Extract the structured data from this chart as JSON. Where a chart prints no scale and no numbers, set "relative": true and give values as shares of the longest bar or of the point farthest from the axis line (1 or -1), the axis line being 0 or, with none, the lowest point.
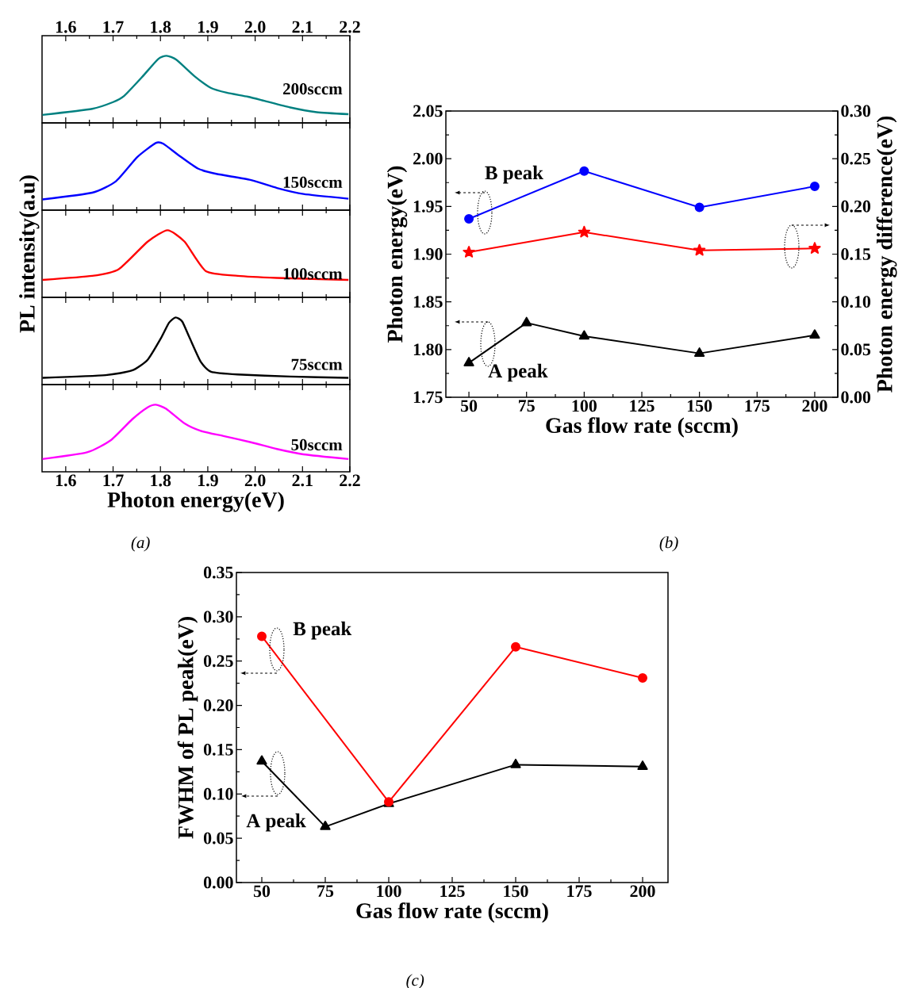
{
  "chart_data": [
    {
      "type": "line",
      "relative": true,
      "tick_labels": "x",
      "xlim": [
        1.55,
        2.2
      ],
      "xticks": [
        1.6,
        1.7,
        1.8,
        1.9,
        {
          "value": 2.0,
          "label": "2.0"
        },
        2.1,
        2.2
      ],
      "series": [
        {
          "name": "200sccm",
          "color": "#008080",
          "x": [
            1.551,
            1.656,
            1.7,
            1.723,
            1.762,
            1.795,
            1.813,
            1.834,
            1.873,
            1.907,
            1.94,
            1.985,
            2.019,
            2.074,
            2.13,
            2.197
          ],
          "values": [
            0.12,
            0.21,
            0.31,
            0.4,
            0.69,
            0.95,
            1.0,
            0.94,
            0.69,
            0.52,
            0.45,
            0.39,
            0.33,
            0.23,
            0.16,
            0.13
          ]
        }
      ]
    },
    {
      "type": "line",
      "relative": true,
      "tick_labels": false,
      "xlim": [
        1.55,
        2.2
      ],
      "xticks": [
        1.6,
        1.7,
        1.8,
        1.9,
        2.0,
        2.1,
        2.2
      ],
      "series": [
        {
          "name": "150sccm",
          "color": "#0000ff",
          "x": [
            1.551,
            1.656,
            1.706,
            1.751,
            1.79,
            1.806,
            1.84,
            1.879,
            1.918,
            1.99,
            2.046,
            2.102,
            2.197
          ],
          "values": [
            0.16,
            0.26,
            0.43,
            0.79,
            1.0,
            0.99,
            0.81,
            0.62,
            0.54,
            0.45,
            0.33,
            0.24,
            0.17
          ]
        }
      ]
    },
    {
      "type": "line",
      "relative": true,
      "tick_labels": false,
      "ylabel": "PL intensity(a.u)",
      "xlim": [
        1.55,
        2.2
      ],
      "xticks": [
        1.6,
        1.7,
        1.8,
        1.9,
        2.0,
        2.1,
        2.2
      ],
      "series": [
        {
          "name": "100sccm",
          "color": "#ff0000",
          "x": [
            1.551,
            1.656,
            1.712,
            1.773,
            1.815,
            1.851,
            1.896,
            1.963,
            2.046,
            2.197
          ],
          "values": [
            0.26,
            0.32,
            0.42,
            0.83,
            1.0,
            0.83,
            0.39,
            0.32,
            0.29,
            0.26
          ]
        }
      ]
    },
    {
      "type": "line",
      "relative": true,
      "tick_labels": false,
      "xlim": [
        1.55,
        2.2
      ],
      "xticks": [
        1.6,
        1.7,
        1.8,
        1.9,
        2.0,
        2.1,
        2.2
      ],
      "series": [
        {
          "name": "75sccm",
          "color": "#000000",
          "x": [
            1.551,
            1.684,
            1.74,
            1.773,
            1.801,
            1.818,
            1.832,
            1.846,
            1.862,
            1.885,
            1.907,
            1.963,
            2.074,
            2.197
          ],
          "values": [
            0.1,
            0.14,
            0.21,
            0.37,
            0.69,
            0.92,
            1.0,
            0.94,
            0.69,
            0.34,
            0.19,
            0.15,
            0.12,
            0.1
          ]
        }
      ]
    },
    {
      "type": "line",
      "relative": true,
      "xlabel": "Photon energy(eV)",
      "annotations": [
        "(a)"
      ],
      "xlim": [
        1.55,
        2.2
      ],
      "xticks": [
        1.6,
        1.7,
        1.8,
        1.9,
        {
          "value": 2.0,
          "label": "2.0"
        },
        2.1,
        2.2
      ],
      "series": [
        {
          "name": "50sccm",
          "color": "#ff00ff",
          "x": [
            1.551,
            1.645,
            1.695,
            1.74,
            1.773,
            1.79,
            1.812,
            1.851,
            1.885,
            1.935,
            1.991,
            2.046,
            2.102,
            2.197
          ],
          "values": [
            0.19,
            0.29,
            0.47,
            0.78,
            0.96,
            1.0,
            0.94,
            0.72,
            0.61,
            0.53,
            0.44,
            0.34,
            0.26,
            0.19
          ]
        }
      ]
    },
    {
      "type": "line",
      "xlabel": "Gas flow rate (sccm)",
      "ylabel": "Photon energy(eV)",
      "y2label": "Photon energy difference(eV)",
      "annotations": [
        "(b)",
        "B peak",
        "A peak"
      ],
      "xlim": [
        40,
        210
      ],
      "xticks": [
        50,
        75,
        100,
        125,
        150,
        175,
        200
      ],
      "ylim": [
        1.75,
        2.05
      ],
      "yticks": [
        1.75,
        {
          "value": 1.8,
          "label": "1.80"
        },
        1.85,
        {
          "value": 1.9,
          "label": "1.90"
        },
        1.95,
        {
          "value": 2.0,
          "label": "2.00"
        },
        2.05
      ],
      "y2lim": [
        0,
        0.3
      ],
      "y2ticks": [
        {
          "value": 0,
          "label": "0.00"
        },
        0.05,
        {
          "value": 0.1,
          "label": "0.10"
        },
        0.15,
        {
          "value": 0.2,
          "label": "0.20"
        },
        0.25,
        {
          "value": 0.3,
          "label": "0.30"
        }
      ],
      "series": [
        {
          "color": "#0000ff",
          "marker": "circle",
          "x": [
            50,
            100,
            150,
            200
          ],
          "values": [
            1.937,
            1.987,
            1.949,
            1.971
          ]
        },
        {
          "color": "#ff0000",
          "marker": "star",
          "axis": "y2",
          "x": [
            50,
            100,
            150,
            200
          ],
          "values": [
            0.152,
            0.173,
            0.154,
            0.156
          ]
        },
        {
          "color": "#000000",
          "marker": "triangle",
          "x": [
            50,
            75,
            100,
            150,
            200
          ],
          "values": [
            1.786,
            1.828,
            1.814,
            1.796,
            1.815
          ]
        }
      ]
    },
    {
      "type": "line",
      "xlabel": "Gas flow rate (sccm)",
      "ylabel": "FWHM of PL peak(eV)",
      "annotations": [
        "(c)",
        "B peak",
        "A peak"
      ],
      "xlim": [
        40,
        210
      ],
      "xticks": [
        50,
        75,
        100,
        125,
        150,
        175,
        200
      ],
      "ylim": [
        0,
        0.35
      ],
      "yticks": [
        {
          "value": 0,
          "label": "0.00"
        },
        0.05,
        {
          "value": 0.1,
          "label": "0.10"
        },
        0.15,
        {
          "value": 0.2,
          "label": "0.20"
        },
        0.25,
        {
          "value": 0.3,
          "label": "0.30"
        },
        0.35
      ],
      "series": [
        {
          "color": "#000000",
          "marker": "triangle",
          "x": [
            50,
            75,
            100,
            150,
            200
          ],
          "values": [
            0.137,
            0.063,
            0.089,
            0.133,
            0.131
          ]
        },
        {
          "color": "#ff0000",
          "marker": "circle",
          "x": [
            50,
            100,
            150,
            200
          ],
          "values": [
            0.278,
            0.091,
            0.266,
            0.231
          ]
        }
      ]
    }
  ]
}
